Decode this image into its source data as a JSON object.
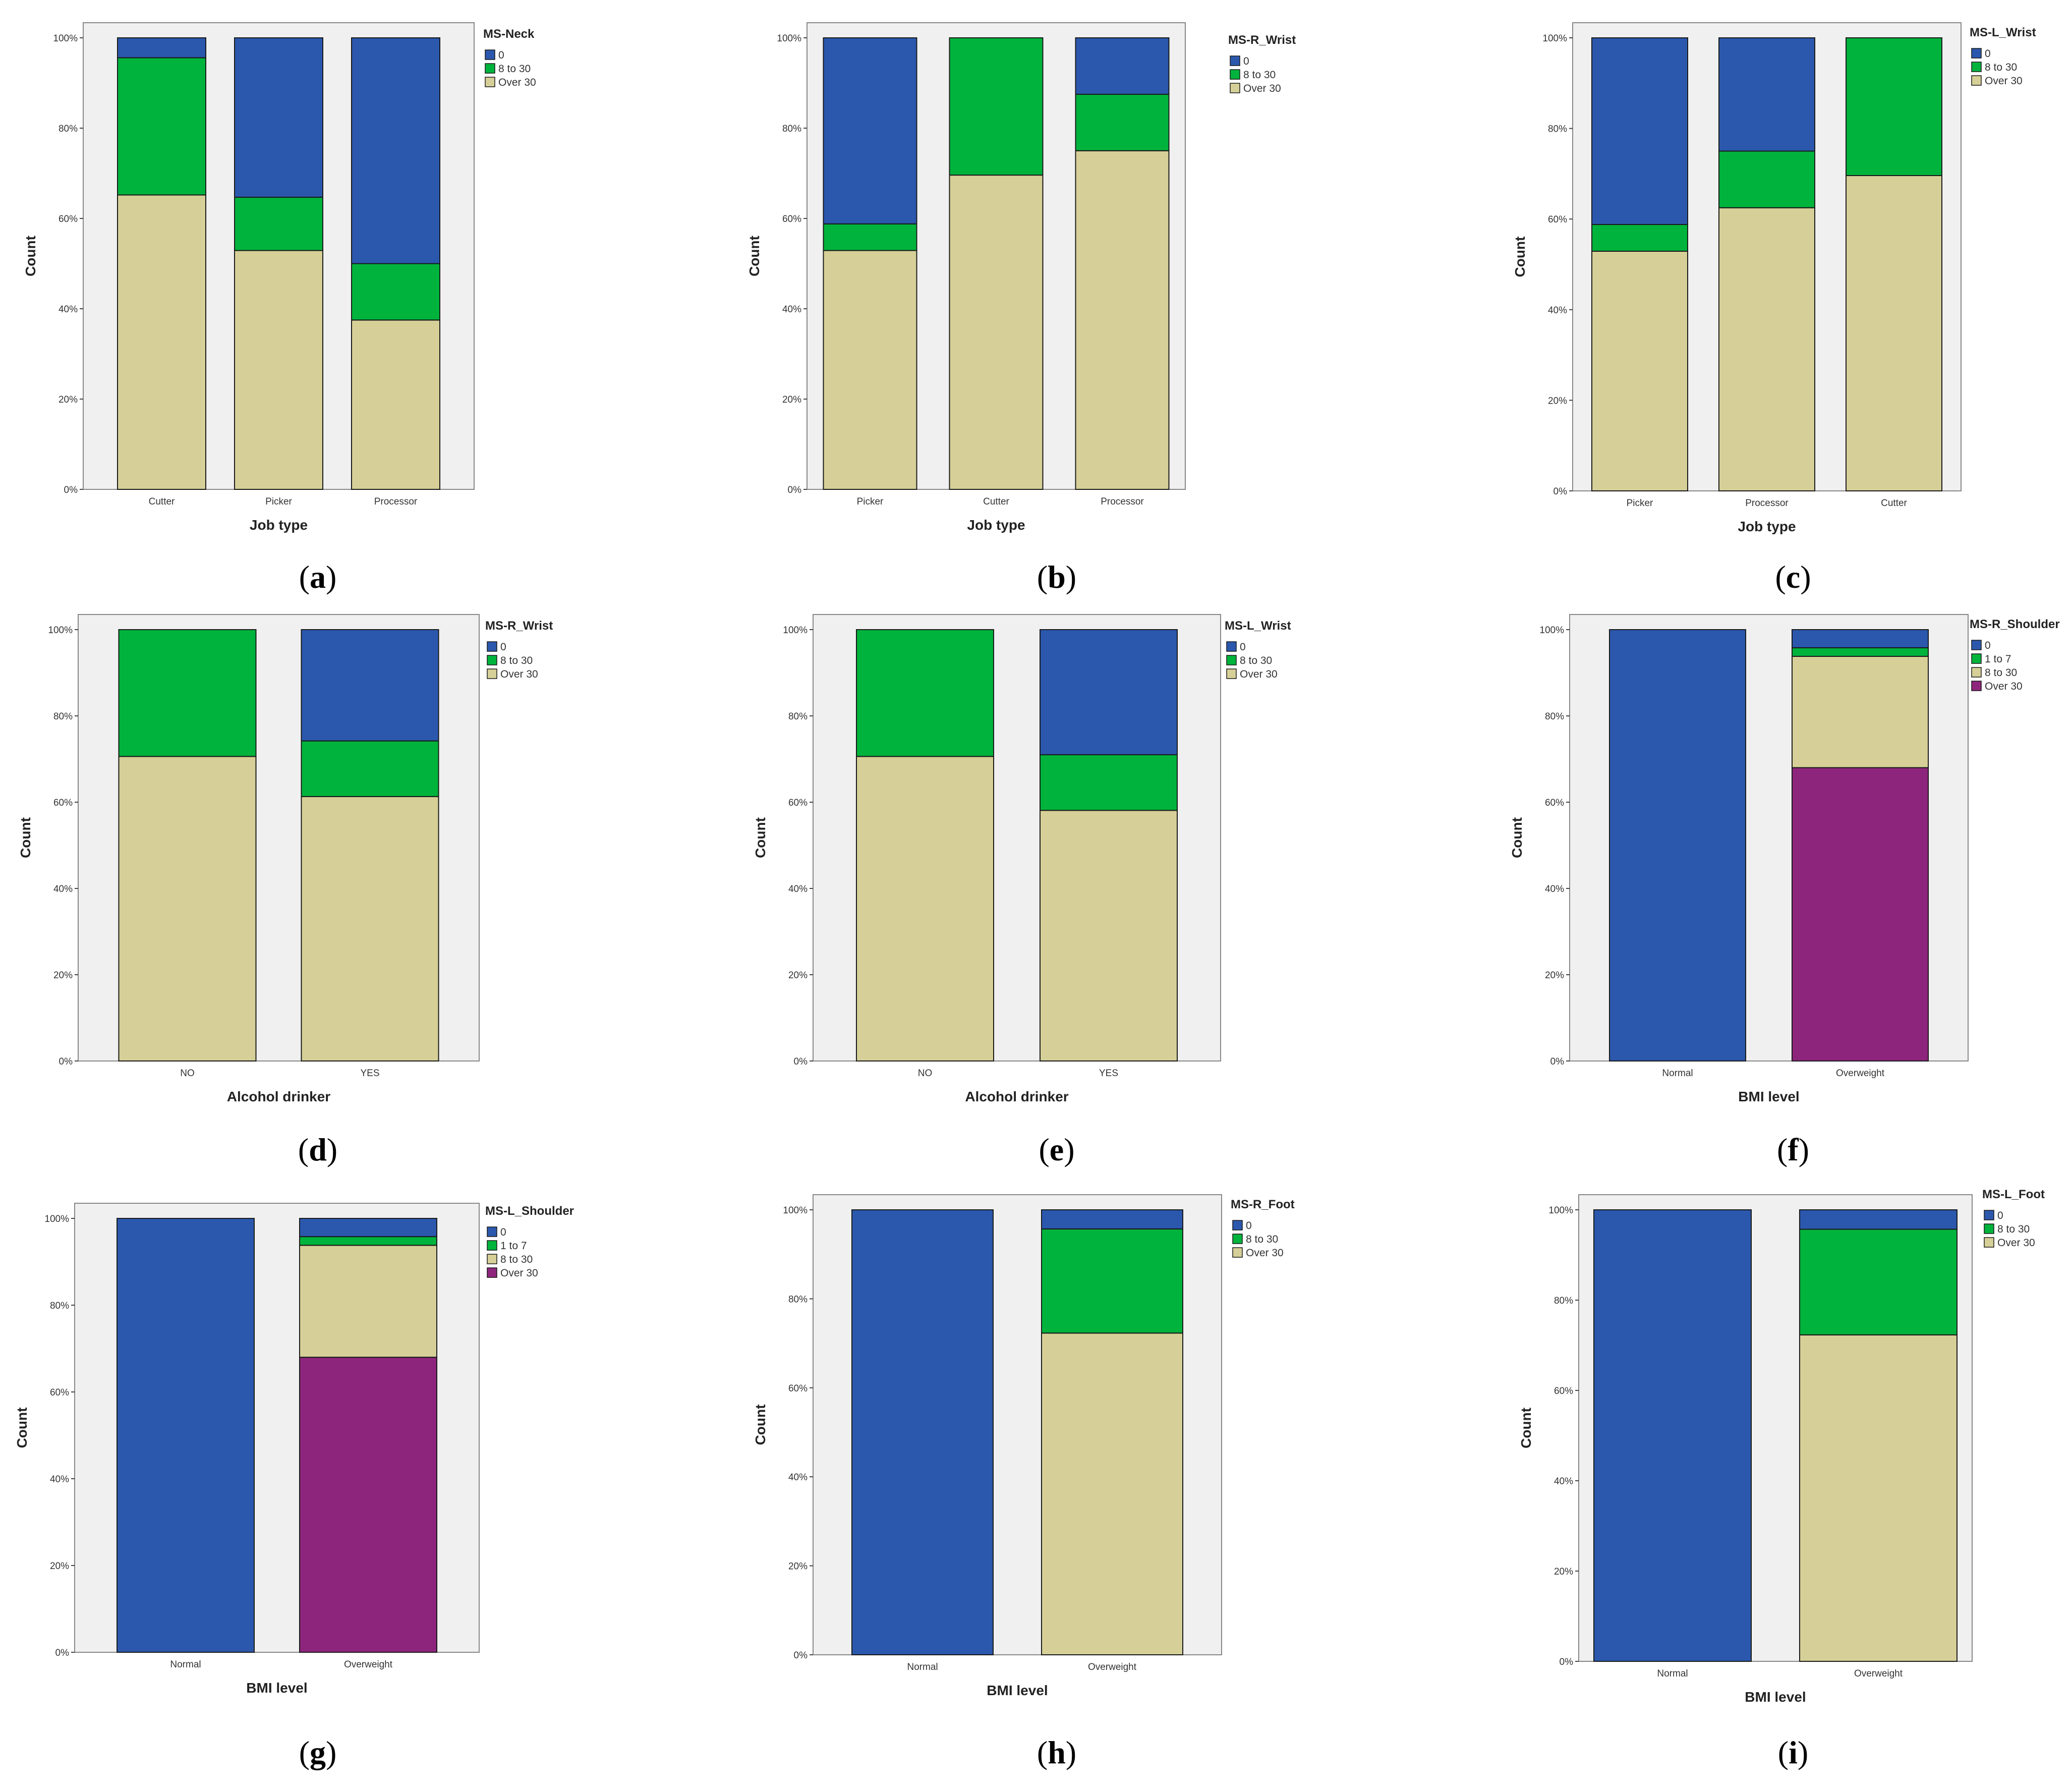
{
  "colors": {
    "0": "#2b58ad",
    "1 to 7": "#00b33c",
    "8 to 30": "#00b33c",
    "8 to 30 (shoulder)": "#d6d098",
    "Over 30": "#d6d098",
    "Over 30 (shoulder)": "#8e257c",
    "plot_background": "#f0f0f0"
  },
  "chart_data": [
    {
      "id": "a",
      "caption": "a",
      "type": "bar",
      "stacked": true,
      "legend_title": "MS-Neck",
      "xlabel": "Job type",
      "ylabel": "Count",
      "y_ticks": [
        "0%",
        "20%",
        "40%",
        "60%",
        "80%",
        "100%"
      ],
      "ylim": [
        0,
        100
      ],
      "categories": [
        "Cutter",
        "Picker",
        "Processor"
      ],
      "series": [
        {
          "name": "Over 30",
          "values": [
            65.2,
            52.9,
            37.5
          ]
        },
        {
          "name": "8 to 30",
          "values": [
            30.4,
            11.8,
            12.5
          ]
        },
        {
          "name": "0",
          "values": [
            4.4,
            35.3,
            50.0
          ]
        }
      ]
    },
    {
      "id": "b",
      "caption": "b",
      "type": "bar",
      "stacked": true,
      "legend_title": "MS-R_Wrist",
      "xlabel": "Job type",
      "ylabel": "Count",
      "y_ticks": [
        "0%",
        "20%",
        "40%",
        "60%",
        "80%",
        "100%"
      ],
      "ylim": [
        0,
        100
      ],
      "categories": [
        "Picker",
        "Cutter",
        "Processor"
      ],
      "series": [
        {
          "name": "Over 30",
          "values": [
            52.9,
            69.6,
            75.0
          ]
        },
        {
          "name": "8 to 30",
          "values": [
            5.9,
            30.4,
            12.5
          ]
        },
        {
          "name": "0",
          "values": [
            41.2,
            0,
            12.5
          ]
        }
      ]
    },
    {
      "id": "c",
      "caption": "c",
      "type": "bar",
      "stacked": true,
      "legend_title": "MS-L_Wrist",
      "xlabel": "Job type",
      "ylabel": "Count",
      "y_ticks": [
        "0%",
        "20%",
        "40%",
        "60%",
        "80%",
        "100%"
      ],
      "ylim": [
        0,
        100
      ],
      "categories": [
        "Picker",
        "Processor",
        "Cutter"
      ],
      "series": [
        {
          "name": "Over 30",
          "values": [
            52.9,
            62.5,
            69.6
          ]
        },
        {
          "name": "8 to 30",
          "values": [
            5.9,
            12.5,
            30.4
          ]
        },
        {
          "name": "0",
          "values": [
            41.2,
            25.0,
            0
          ]
        }
      ]
    },
    {
      "id": "d",
      "caption": "d",
      "type": "bar",
      "stacked": true,
      "legend_title": "MS-R_Wrist",
      "xlabel": "Alcohol drinker",
      "ylabel": "Count",
      "y_ticks": [
        "0%",
        "20%",
        "40%",
        "60%",
        "80%",
        "100%"
      ],
      "ylim": [
        0,
        100
      ],
      "categories": [
        "NO",
        "YES"
      ],
      "series": [
        {
          "name": "Over 30",
          "values": [
            70.6,
            61.3
          ]
        },
        {
          "name": "8 to 30",
          "values": [
            29.4,
            12.9
          ]
        },
        {
          "name": "0",
          "values": [
            0,
            25.8
          ]
        }
      ]
    },
    {
      "id": "e",
      "caption": "e",
      "type": "bar",
      "stacked": true,
      "legend_title": "MS-L_Wrist",
      "xlabel": "Alcohol drinker",
      "ylabel": "Count",
      "y_ticks": [
        "0%",
        "20%",
        "40%",
        "60%",
        "80%",
        "100%"
      ],
      "ylim": [
        0,
        100
      ],
      "categories": [
        "NO",
        "YES"
      ],
      "series": [
        {
          "name": "Over 30",
          "values": [
            70.6,
            58.1
          ]
        },
        {
          "name": "8 to 30",
          "values": [
            29.4,
            12.9
          ]
        },
        {
          "name": "0",
          "values": [
            0,
            29.0
          ]
        }
      ]
    },
    {
      "id": "f",
      "caption": "f",
      "type": "bar",
      "stacked": true,
      "legend_title": "MS-R_Shoulder",
      "xlabel": "BMI level",
      "ylabel": "Count",
      "y_ticks": [
        "0%",
        "20%",
        "40%",
        "60%",
        "80%",
        "100%"
      ],
      "ylim": [
        0,
        100
      ],
      "categories": [
        "Normal",
        "Overweight"
      ],
      "series": [
        {
          "name": "Over 30",
          "values": [
            0,
            68.0
          ]
        },
        {
          "name": "8 to 30",
          "values": [
            0,
            25.8
          ]
        },
        {
          "name": "1 to 7",
          "values": [
            0,
            2.0
          ]
        },
        {
          "name": "0",
          "values": [
            100,
            4.2
          ]
        }
      ]
    },
    {
      "id": "g",
      "caption": "g",
      "type": "bar",
      "stacked": true,
      "legend_title": "MS-L_Shoulder",
      "xlabel": "BMI level",
      "ylabel": "Count",
      "y_ticks": [
        "0%",
        "20%",
        "40%",
        "60%",
        "80%",
        "100%"
      ],
      "ylim": [
        0,
        100
      ],
      "categories": [
        "Normal",
        "Overweight"
      ],
      "series": [
        {
          "name": "Over 30",
          "values": [
            0,
            68.0
          ]
        },
        {
          "name": "8 to 30",
          "values": [
            0,
            25.8
          ]
        },
        {
          "name": "1 to 7",
          "values": [
            0,
            2.0
          ]
        },
        {
          "name": "0",
          "values": [
            100,
            4.2
          ]
        }
      ]
    },
    {
      "id": "h",
      "caption": "h",
      "type": "bar",
      "stacked": true,
      "legend_title": "MS-R_Foot",
      "xlabel": "BMI level",
      "ylabel": "Count",
      "y_ticks": [
        "0%",
        "20%",
        "40%",
        "60%",
        "80%",
        "100%"
      ],
      "ylim": [
        0,
        100
      ],
      "categories": [
        "Normal",
        "Overweight"
      ],
      "series": [
        {
          "name": "Over 30",
          "values": [
            0,
            72.3
          ]
        },
        {
          "name": "8 to 30",
          "values": [
            0,
            23.4
          ]
        },
        {
          "name": "0",
          "values": [
            100,
            4.3
          ]
        }
      ]
    },
    {
      "id": "i",
      "caption": "i",
      "type": "bar",
      "stacked": true,
      "legend_title": "MS-L_Foot",
      "xlabel": "BMI level",
      "ylabel": "Count",
      "y_ticks": [
        "0%",
        "20%",
        "40%",
        "60%",
        "80%",
        "100%"
      ],
      "ylim": [
        0,
        100
      ],
      "categories": [
        "Normal",
        "Overweight"
      ],
      "series": [
        {
          "name": "Over 30",
          "values": [
            0,
            72.3
          ]
        },
        {
          "name": "8 to 30",
          "values": [
            0,
            23.4
          ]
        },
        {
          "name": "0",
          "values": [
            100,
            4.3
          ]
        }
      ]
    }
  ]
}
